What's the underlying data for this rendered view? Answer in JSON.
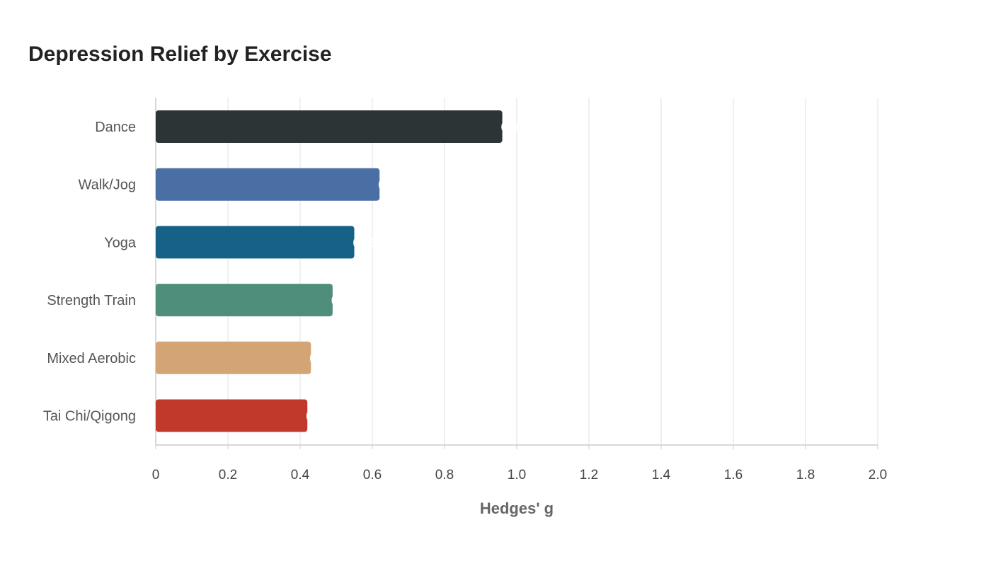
{
  "chart_data": {
    "type": "bar",
    "orientation": "horizontal",
    "title": "Depression Relief by Exercise",
    "xlabel": "Hedges' g",
    "ylabel": "",
    "categories": [
      "Dance",
      "Walk/Jog",
      "Yoga",
      "Strength Train",
      "Mixed Aerobic",
      "Tai Chi/Qigong"
    ],
    "values": [
      0.96,
      0.62,
      0.55,
      0.49,
      0.43,
      0.42
    ],
    "colors": [
      "#2d3436",
      "#4a6fa5",
      "#166186",
      "#4e8e7b",
      "#d4a574",
      "#c0392b"
    ],
    "xlim": [
      0,
      2.0
    ],
    "xticks": [
      "0",
      "0.2",
      "0.4",
      "0.6",
      "0.8",
      "1.0",
      "1.2",
      "1.4",
      "1.6",
      "1.8",
      "2.0"
    ],
    "grid": true,
    "legend": "none"
  }
}
